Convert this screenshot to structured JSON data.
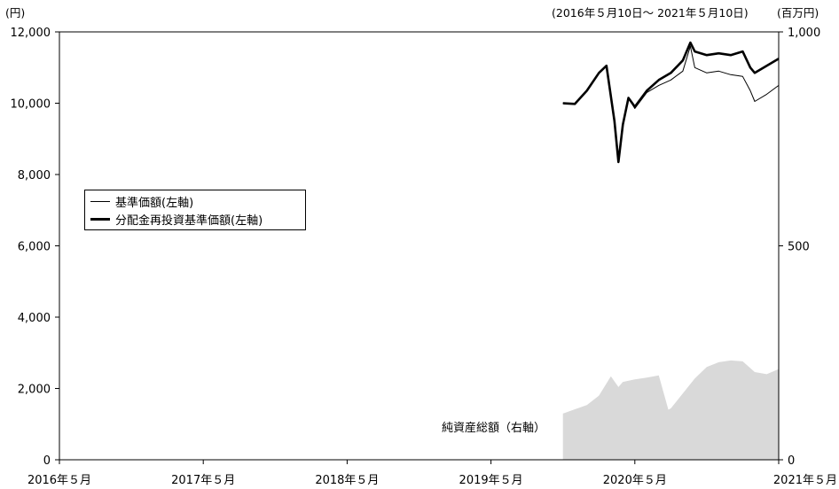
{
  "header": {
    "left_unit": "(円)",
    "period": "(2016年５月10日～ 2021年５月10日)",
    "right_unit": "(百万円)"
  },
  "legend": {
    "nav_label": "基準価額(左軸)",
    "reinvest_label": "分配金再投資基準価額(左軸)"
  },
  "net_assets_label": "純資産総額（右軸）",
  "chart_data": {
    "type": "line",
    "x_ticks": [
      "2016年５月",
      "2017年５月",
      "2018年５月",
      "2019年５月",
      "2020年５月",
      "2021年５月"
    ],
    "x_range": [
      "2016-05",
      "2021-05"
    ],
    "y_left": {
      "unit": "円",
      "ylim": [
        0,
        12000
      ],
      "ticks": [
        "0",
        "2,000",
        "4,000",
        "6,000",
        "8,000",
        "10,000",
        "12,000"
      ]
    },
    "y_right": {
      "unit": "百万円",
      "ylim": [
        0,
        1000
      ],
      "ticks": [
        "0",
        "500",
        "1,000"
      ]
    },
    "grid": false,
    "legend_position": "left-middle",
    "series": [
      {
        "name": "基準価額(左軸)",
        "axis": "left",
        "style": "thin",
        "color": "#000000",
        "points": [
          [
            "2019-11",
            10000
          ],
          [
            "2019-12",
            9980
          ],
          [
            "2020-01",
            10350
          ],
          [
            "2020-02",
            10850
          ],
          [
            "2020-02-20",
            11050
          ],
          [
            "2020-03-10",
            9500
          ],
          [
            "2020-03-20",
            8350
          ],
          [
            "2020-04",
            9400
          ],
          [
            "2020-04-15",
            10150
          ],
          [
            "2020-05",
            9850
          ],
          [
            "2020-06",
            10300
          ],
          [
            "2020-07",
            10500
          ],
          [
            "2020-08",
            10650
          ],
          [
            "2020-09",
            10900
          ],
          [
            "2020-09-20",
            11600
          ],
          [
            "2020-10",
            11000
          ],
          [
            "2020-11",
            10850
          ],
          [
            "2020-12",
            10900
          ],
          [
            "2021-01",
            10800
          ],
          [
            "2021-02",
            10750
          ],
          [
            "2021-02-20",
            10350
          ],
          [
            "2021-03",
            10050
          ],
          [
            "2021-04",
            10250
          ],
          [
            "2021-05",
            10500
          ]
        ]
      },
      {
        "name": "分配金再投資基準価額(左軸)",
        "axis": "left",
        "style": "thick",
        "color": "#000000",
        "points": [
          [
            "2019-11",
            10000
          ],
          [
            "2019-12",
            9980
          ],
          [
            "2020-01",
            10350
          ],
          [
            "2020-02",
            10850
          ],
          [
            "2020-02-20",
            11050
          ],
          [
            "2020-03-10",
            9500
          ],
          [
            "2020-03-20",
            8350
          ],
          [
            "2020-04",
            9400
          ],
          [
            "2020-04-15",
            10150
          ],
          [
            "2020-05",
            9900
          ],
          [
            "2020-06",
            10350
          ],
          [
            "2020-07",
            10650
          ],
          [
            "2020-08",
            10850
          ],
          [
            "2020-09",
            11200
          ],
          [
            "2020-09-20",
            11700
          ],
          [
            "2020-10",
            11450
          ],
          [
            "2020-11",
            11350
          ],
          [
            "2020-12",
            11400
          ],
          [
            "2021-01",
            11350
          ],
          [
            "2021-02",
            11450
          ],
          [
            "2021-02-20",
            11000
          ],
          [
            "2021-03",
            10850
          ],
          [
            "2021-04",
            11050
          ],
          [
            "2021-05",
            11250
          ]
        ]
      },
      {
        "name": "純資産総額（右軸）",
        "axis": "right",
        "style": "area",
        "color": "#d9d9d9",
        "points": [
          [
            "2019-11",
            108
          ],
          [
            "2019-12",
            118
          ],
          [
            "2020-01",
            128
          ],
          [
            "2020-02",
            150
          ],
          [
            "2020-03",
            195
          ],
          [
            "2020-03-20",
            170
          ],
          [
            "2020-04",
            182
          ],
          [
            "2020-05",
            188
          ],
          [
            "2020-06",
            192
          ],
          [
            "2020-07",
            197
          ],
          [
            "2020-07-25",
            117
          ],
          [
            "2020-08",
            120
          ],
          [
            "2020-09",
            155
          ],
          [
            "2020-10",
            190
          ],
          [
            "2020-11",
            217
          ],
          [
            "2020-12",
            228
          ],
          [
            "2021-01",
            232
          ],
          [
            "2021-02",
            230
          ],
          [
            "2021-03",
            205
          ],
          [
            "2021-04",
            200
          ],
          [
            "2021-05",
            212
          ]
        ]
      }
    ]
  }
}
